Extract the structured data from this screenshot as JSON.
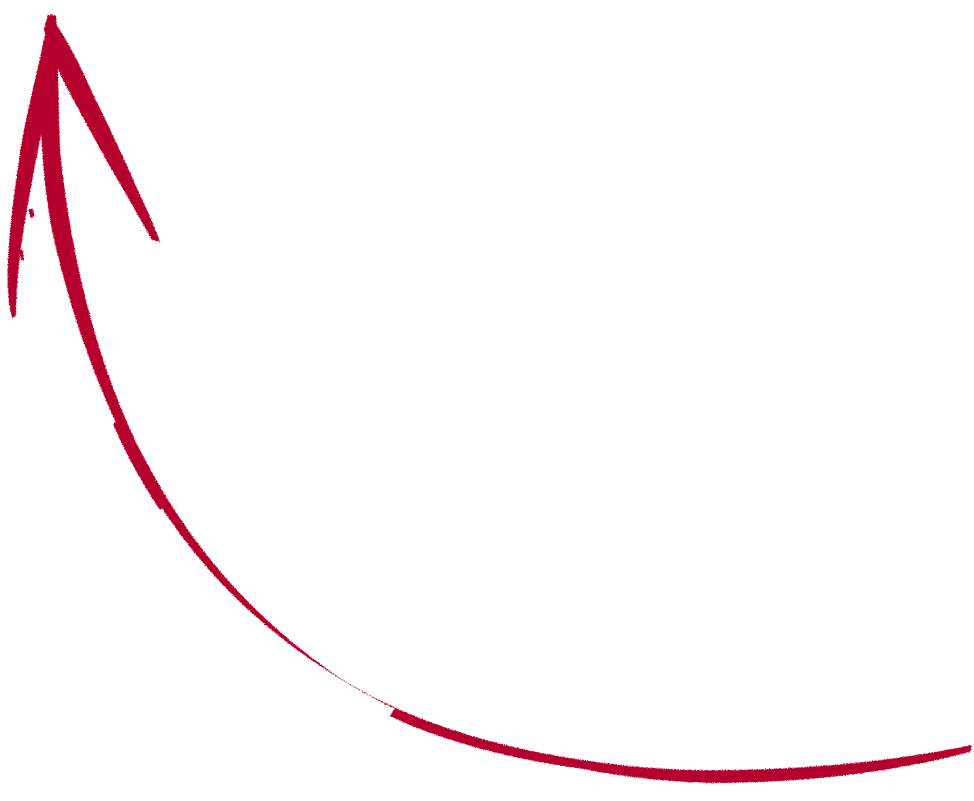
{
  "graphic": {
    "icon": "curved-arrow-up-icon",
    "style": "brush-stroke",
    "color": "#b5002d",
    "background": "#ffffff"
  }
}
